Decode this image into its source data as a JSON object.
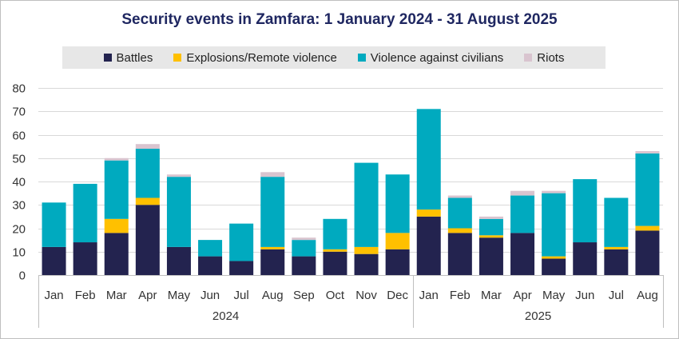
{
  "chart_data": {
    "type": "bar",
    "stacked": true,
    "title": "Security events in Zamfara: 1 January 2024 - 31 August 2025",
    "categories": [
      "Jan",
      "Feb",
      "Mar",
      "Apr",
      "May",
      "Jun",
      "Jul",
      "Aug",
      "Sep",
      "Oct",
      "Nov",
      "Dec",
      "Jan",
      "Feb",
      "Mar",
      "Apr",
      "May",
      "Jun",
      "Jul",
      "Aug"
    ],
    "groups": [
      {
        "label": "2024",
        "count": 12
      },
      {
        "label": "2025",
        "count": 8
      }
    ],
    "series": [
      {
        "name": "Battles",
        "color": "#23234f",
        "values": [
          12,
          14,
          18,
          30,
          12,
          8,
          6,
          11,
          8,
          10,
          9,
          11,
          25,
          18,
          16,
          18,
          7,
          14,
          11,
          19
        ]
      },
      {
        "name": "Explosions/Remote violence",
        "color": "#ffc000",
        "values": [
          0,
          0,
          6,
          3,
          0,
          0,
          0,
          1,
          0,
          1,
          3,
          7,
          3,
          2,
          1,
          0,
          1,
          0,
          1,
          2
        ]
      },
      {
        "name": "Violence against civilians",
        "color": "#00aabf",
        "values": [
          19,
          25,
          25,
          21,
          30,
          7,
          16,
          30,
          7,
          13,
          36,
          25,
          43,
          13,
          7,
          16,
          27,
          27,
          21,
          31
        ]
      },
      {
        "name": "Riots",
        "color": "#d9c4cf",
        "values": [
          0,
          0,
          1,
          2,
          1,
          0,
          0,
          2,
          1,
          0,
          0,
          0,
          0,
          1,
          1,
          2,
          1,
          0,
          0,
          1
        ]
      }
    ],
    "ylim": [
      0,
      80
    ],
    "yticks": [
      0,
      10,
      20,
      30,
      40,
      50,
      60,
      70,
      80
    ],
    "xlabel": "",
    "ylabel": "",
    "grid": true,
    "legend_position": "top"
  }
}
